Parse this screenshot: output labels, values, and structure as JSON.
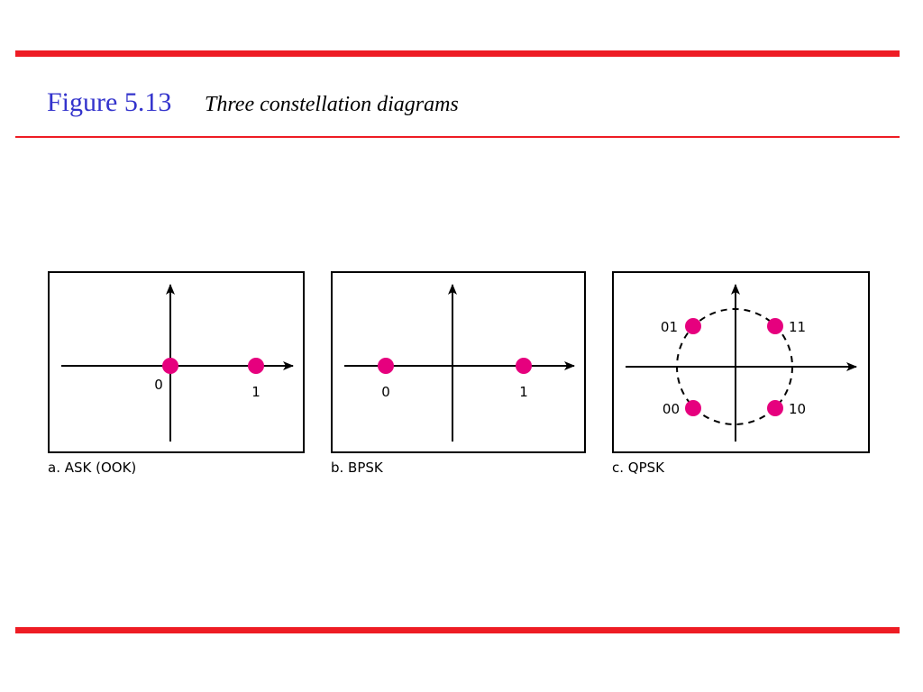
{
  "header": {
    "figure": "Figure 5.13",
    "caption": "Three constellation diagrams"
  },
  "panels": [
    {
      "label": "a. ASK (OOK)",
      "points": [
        "0",
        "1"
      ]
    },
    {
      "label": "b. BPSK",
      "points": [
        "0",
        "1"
      ]
    },
    {
      "label": "c. QPSK",
      "points": [
        "01",
        "11",
        "00",
        "10"
      ]
    }
  ]
}
